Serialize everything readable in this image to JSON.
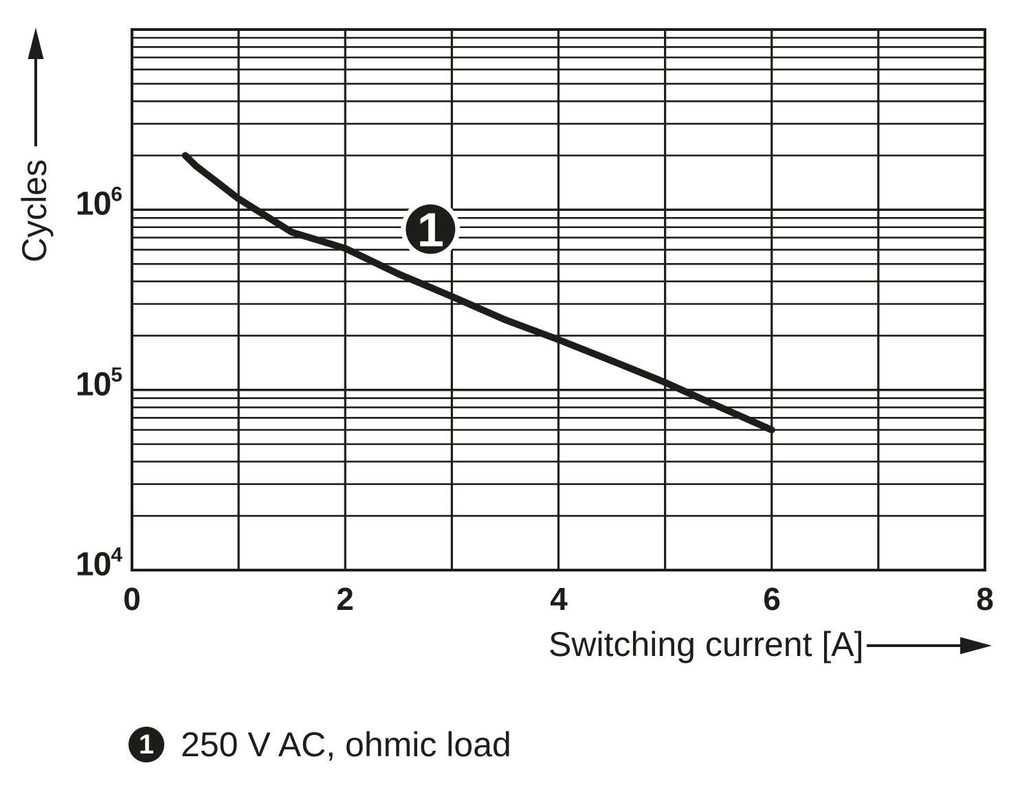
{
  "colors": {
    "ink": "#1d1d1b",
    "background": "#ffffff",
    "marker_text": "#ffffff"
  },
  "chart_data": {
    "type": "line",
    "title": "",
    "xlabel": "Switching current [A]",
    "ylabel": "Cycles",
    "grid": "full-log-grid-on",
    "legend_position": "below-chart",
    "x_axis": {
      "scale": "linear",
      "min": 0,
      "max": 8,
      "gridline_step": 1,
      "ticks": [
        {
          "label": "0",
          "value": 0
        },
        {
          "label": "2",
          "value": 2
        },
        {
          "label": "4",
          "value": 4
        },
        {
          "label": "6",
          "value": 6
        },
        {
          "label": "8",
          "value": 8
        }
      ]
    },
    "y_axis": {
      "scale": "log",
      "min": 10000,
      "max": 10000000,
      "ticks": [
        {
          "base": "10",
          "exp": "6",
          "value": 1000000
        },
        {
          "base": "10",
          "exp": "5",
          "value": 100000
        },
        {
          "base": "10",
          "exp": "4",
          "value": 10000
        }
      ]
    },
    "series": [
      {
        "name": "1",
        "label": "250 V AC, ohmic load",
        "points": [
          [
            0.5,
            2000000
          ],
          [
            0.6,
            1750000
          ],
          [
            0.8,
            1420000
          ],
          [
            1.0,
            1150000
          ],
          [
            1.5,
            750000
          ],
          [
            2.0,
            610000
          ],
          [
            2.5,
            440000
          ],
          [
            3.0,
            330000
          ],
          [
            3.5,
            245000
          ],
          [
            4.0,
            190000
          ],
          [
            4.5,
            145000
          ],
          [
            5.0,
            110000
          ],
          [
            5.5,
            81000
          ],
          [
            6.0,
            60000
          ]
        ]
      }
    ],
    "annotations": [
      {
        "label": "1",
        "x": 2.8,
        "y": 780000
      }
    ]
  },
  "legend": {
    "items": [
      {
        "marker": "1",
        "label": "250 V AC, ohmic load"
      }
    ]
  }
}
